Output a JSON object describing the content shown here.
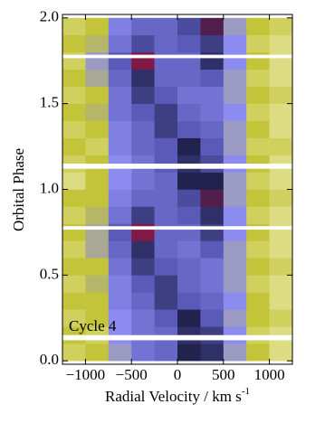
{
  "chart_data": {
    "type": "heatmap",
    "x_label": "Radial Velocity / km s",
    "x_label_sup": "-1",
    "y_label": "Orbital Phase",
    "annotation": "Cycle 4",
    "xbins": [
      -1250,
      -1000,
      -750,
      -500,
      -250,
      0,
      250,
      500,
      750,
      1000,
      1250
    ],
    "ybins": [
      0,
      0.1,
      0.2,
      0.3,
      0.4,
      0.5,
      0.6,
      0.7,
      0.8,
      0.9,
      1.0,
      1.1,
      1.2,
      1.3,
      1.4,
      1.5,
      1.6,
      1.7,
      1.8,
      1.9,
      2.0
    ],
    "values": [
      [
        0.15,
        0.2,
        0.35,
        0.5,
        0.55,
        0.8,
        0.75,
        0.35,
        0.2,
        0.1
      ],
      [
        0.2,
        0.15,
        0.4,
        0.5,
        0.55,
        0.75,
        0.7,
        0.4,
        0.15,
        0.1
      ],
      [
        0.15,
        0.2,
        0.4,
        0.5,
        0.6,
        0.8,
        0.6,
        0.35,
        0.2,
        0.15
      ],
      [
        0.2,
        0.2,
        0.45,
        0.55,
        0.7,
        0.6,
        0.55,
        0.4,
        0.2,
        0.1
      ],
      [
        0.15,
        0.25,
        0.45,
        0.6,
        0.7,
        0.55,
        0.5,
        0.35,
        0.15,
        0.1
      ],
      [
        0.2,
        0.2,
        0.5,
        0.7,
        0.6,
        0.55,
        0.5,
        0.35,
        0.2,
        0.15
      ],
      [
        0.15,
        0.3,
        0.55,
        0.75,
        0.55,
        0.5,
        0.6,
        0.35,
        0.15,
        0.1
      ],
      [
        0.2,
        0.3,
        0.6,
        0.9,
        0.55,
        0.55,
        0.7,
        0.4,
        0.2,
        0.1
      ],
      [
        0.15,
        0.25,
        0.5,
        0.7,
        0.55,
        0.6,
        0.75,
        0.4,
        0.15,
        0.1
      ],
      [
        0.2,
        0.2,
        0.45,
        0.55,
        0.55,
        0.65,
        0.85,
        0.35,
        0.2,
        0.15
      ],
      [
        0.1,
        0.2,
        0.4,
        0.5,
        0.55,
        0.8,
        0.8,
        0.35,
        0.15,
        0.1
      ],
      [
        0.15,
        0.2,
        0.4,
        0.5,
        0.6,
        0.75,
        0.65,
        0.4,
        0.2,
        0.1
      ],
      [
        0.2,
        0.15,
        0.45,
        0.55,
        0.6,
        0.8,
        0.6,
        0.35,
        0.15,
        0.15
      ],
      [
        0.15,
        0.2,
        0.45,
        0.55,
        0.7,
        0.6,
        0.55,
        0.35,
        0.2,
        0.1
      ],
      [
        0.2,
        0.25,
        0.5,
        0.6,
        0.7,
        0.55,
        0.5,
        0.4,
        0.15,
        0.1
      ],
      [
        0.15,
        0.2,
        0.5,
        0.7,
        0.6,
        0.5,
        0.5,
        0.35,
        0.2,
        0.15
      ],
      [
        0.2,
        0.3,
        0.55,
        0.75,
        0.55,
        0.55,
        0.6,
        0.35,
        0.15,
        0.1
      ],
      [
        0.15,
        0.35,
        0.6,
        0.9,
        0.55,
        0.55,
        0.75,
        0.4,
        0.2,
        0.1
      ],
      [
        0.2,
        0.25,
        0.5,
        0.65,
        0.55,
        0.6,
        0.7,
        0.4,
        0.15,
        0.1
      ],
      [
        0.15,
        0.2,
        0.45,
        0.55,
        0.55,
        0.65,
        0.85,
        0.35,
        0.2,
        0.15
      ]
    ],
    "gaps": [
      [
        0.12,
        0.15
      ],
      [
        0.765,
        0.785
      ],
      [
        1.12,
        1.15
      ],
      [
        1.765,
        1.785
      ]
    ],
    "colormap": [
      "#f4f4cc",
      "#c4c43a",
      "#8c8cf0",
      "#5a5ab8",
      "#22224e",
      "#e01040"
    ],
    "xlim": [
      -1250,
      1250
    ],
    "ylim": [
      -0.02,
      2.02
    ],
    "xticks": [
      {
        "value": -1000,
        "label": "−1000"
      },
      {
        "value": -500,
        "label": "−500"
      },
      0,
      500,
      1000
    ],
    "yticks": [
      {
        "value": 0,
        "label": "0.0"
      },
      {
        "value": 0.5,
        "label": "0.5"
      },
      {
        "value": 1,
        "label": "1.0"
      },
      {
        "value": 1.5,
        "label": "1.5"
      },
      {
        "value": 2,
        "label": "2.0"
      }
    ]
  }
}
